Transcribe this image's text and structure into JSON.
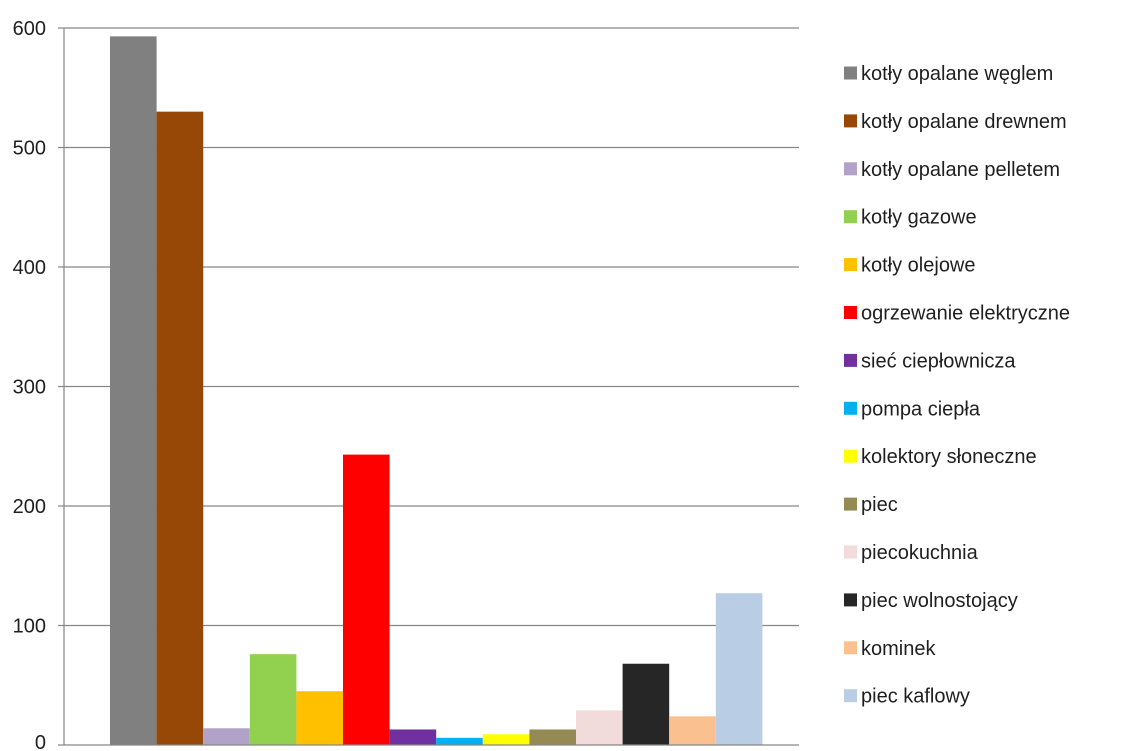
{
  "chart_data": {
    "type": "bar",
    "title": "",
    "xlabel": "",
    "ylabel": "",
    "ylim": [
      0,
      600
    ],
    "y_ticks": [
      "0",
      "100",
      "200",
      "300",
      "400",
      "500",
      "600"
    ],
    "grid": "horizontal",
    "legend_position": "right",
    "categories": [
      "kotły opalane węglem",
      "kotły opalane drewnem",
      "kotły opalane pelletem",
      "kotły gazowe",
      "kotły olejowe",
      "ogrzewanie elektryczne",
      "sieć ciepłownicza",
      "pompa ciepła",
      "kolektory słoneczne",
      "piec",
      "piecokuchnia",
      "piec wolnostojący",
      "kominek",
      "piec kaflowy"
    ],
    "values": [
      593,
      530,
      14,
      76,
      45,
      243,
      13,
      6,
      9,
      13,
      29,
      68,
      24,
      127
    ],
    "colors": [
      "#808080",
      "#974806",
      "#b3a2c7",
      "#92d050",
      "#ffc000",
      "#ff0000",
      "#7030a0",
      "#00b0f0",
      "#ffff00",
      "#948a54",
      "#f2dcdb",
      "#262626",
      "#fac090",
      "#b9cde5"
    ],
    "grid_color": "#868686",
    "axis_color": "#868686"
  }
}
